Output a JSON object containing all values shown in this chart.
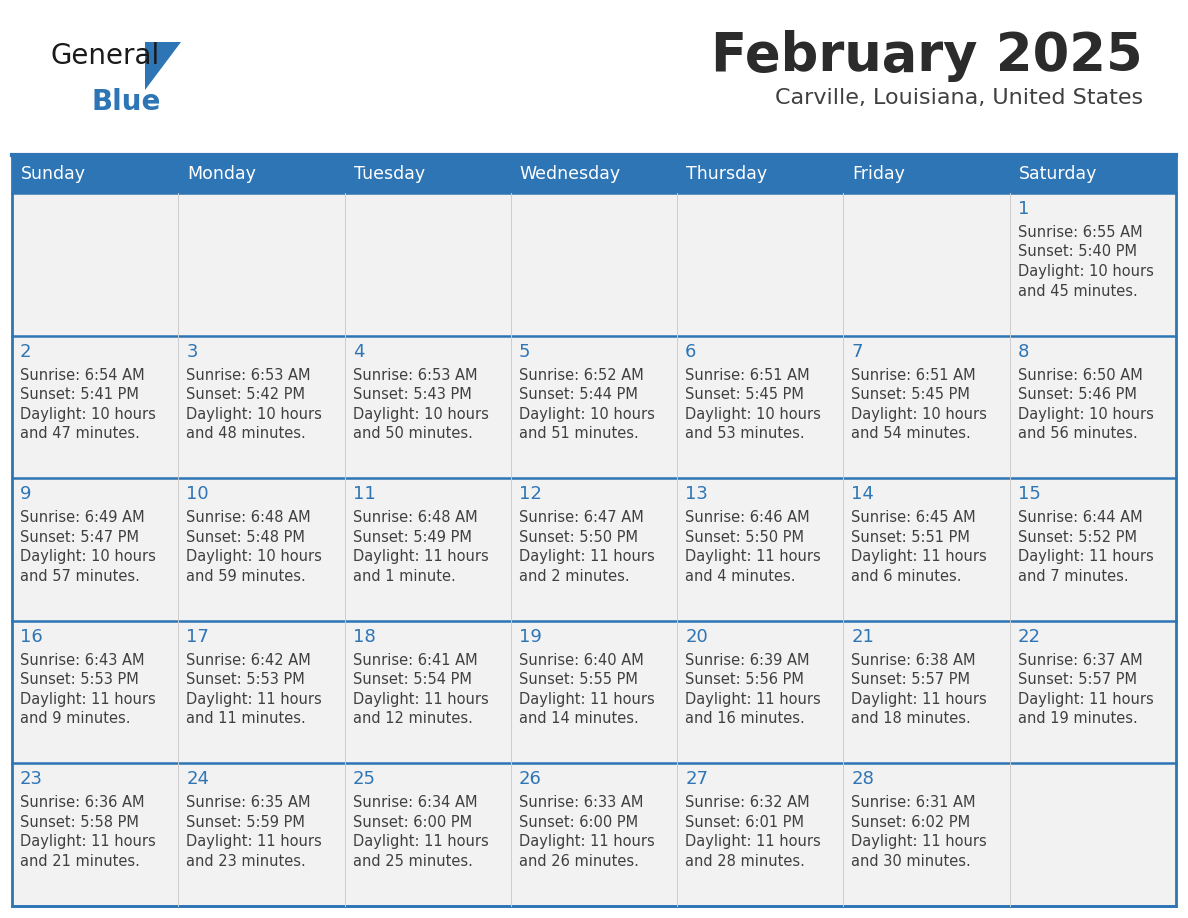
{
  "title": "February 2025",
  "subtitle": "Carville, Louisiana, United States",
  "days_of_week": [
    "Sunday",
    "Monday",
    "Tuesday",
    "Wednesday",
    "Thursday",
    "Friday",
    "Saturday"
  ],
  "header_bg": "#2E75B6",
  "header_text_color": "#FFFFFF",
  "cell_bg": "#F2F2F2",
  "border_color": "#2E75B6",
  "text_color": "#404040",
  "day_num_color": "#2E75B6",
  "title_color": "#2B2B2B",
  "subtitle_color": "#404040",
  "logo_general_color": "#1A1A1A",
  "logo_blue_color": "#2E75B6",
  "calendar_data": [
    [
      null,
      null,
      null,
      null,
      null,
      null,
      {
        "day": 1,
        "sunrise": "6:55 AM",
        "sunset": "5:40 PM",
        "daylight": "10 hours",
        "daylight2": "and 45 minutes."
      }
    ],
    [
      {
        "day": 2,
        "sunrise": "6:54 AM",
        "sunset": "5:41 PM",
        "daylight": "10 hours",
        "daylight2": "and 47 minutes."
      },
      {
        "day": 3,
        "sunrise": "6:53 AM",
        "sunset": "5:42 PM",
        "daylight": "10 hours",
        "daylight2": "and 48 minutes."
      },
      {
        "day": 4,
        "sunrise": "6:53 AM",
        "sunset": "5:43 PM",
        "daylight": "10 hours",
        "daylight2": "and 50 minutes."
      },
      {
        "day": 5,
        "sunrise": "6:52 AM",
        "sunset": "5:44 PM",
        "daylight": "10 hours",
        "daylight2": "and 51 minutes."
      },
      {
        "day": 6,
        "sunrise": "6:51 AM",
        "sunset": "5:45 PM",
        "daylight": "10 hours",
        "daylight2": "and 53 minutes."
      },
      {
        "day": 7,
        "sunrise": "6:51 AM",
        "sunset": "5:45 PM",
        "daylight": "10 hours",
        "daylight2": "and 54 minutes."
      },
      {
        "day": 8,
        "sunrise": "6:50 AM",
        "sunset": "5:46 PM",
        "daylight": "10 hours",
        "daylight2": "and 56 minutes."
      }
    ],
    [
      {
        "day": 9,
        "sunrise": "6:49 AM",
        "sunset": "5:47 PM",
        "daylight": "10 hours",
        "daylight2": "and 57 minutes."
      },
      {
        "day": 10,
        "sunrise": "6:48 AM",
        "sunset": "5:48 PM",
        "daylight": "10 hours",
        "daylight2": "and 59 minutes."
      },
      {
        "day": 11,
        "sunrise": "6:48 AM",
        "sunset": "5:49 PM",
        "daylight": "11 hours",
        "daylight2": "and 1 minute."
      },
      {
        "day": 12,
        "sunrise": "6:47 AM",
        "sunset": "5:50 PM",
        "daylight": "11 hours",
        "daylight2": "and 2 minutes."
      },
      {
        "day": 13,
        "sunrise": "6:46 AM",
        "sunset": "5:50 PM",
        "daylight": "11 hours",
        "daylight2": "and 4 minutes."
      },
      {
        "day": 14,
        "sunrise": "6:45 AM",
        "sunset": "5:51 PM",
        "daylight": "11 hours",
        "daylight2": "and 6 minutes."
      },
      {
        "day": 15,
        "sunrise": "6:44 AM",
        "sunset": "5:52 PM",
        "daylight": "11 hours",
        "daylight2": "and 7 minutes."
      }
    ],
    [
      {
        "day": 16,
        "sunrise": "6:43 AM",
        "sunset": "5:53 PM",
        "daylight": "11 hours",
        "daylight2": "and 9 minutes."
      },
      {
        "day": 17,
        "sunrise": "6:42 AM",
        "sunset": "5:53 PM",
        "daylight": "11 hours",
        "daylight2": "and 11 minutes."
      },
      {
        "day": 18,
        "sunrise": "6:41 AM",
        "sunset": "5:54 PM",
        "daylight": "11 hours",
        "daylight2": "and 12 minutes."
      },
      {
        "day": 19,
        "sunrise": "6:40 AM",
        "sunset": "5:55 PM",
        "daylight": "11 hours",
        "daylight2": "and 14 minutes."
      },
      {
        "day": 20,
        "sunrise": "6:39 AM",
        "sunset": "5:56 PM",
        "daylight": "11 hours",
        "daylight2": "and 16 minutes."
      },
      {
        "day": 21,
        "sunrise": "6:38 AM",
        "sunset": "5:57 PM",
        "daylight": "11 hours",
        "daylight2": "and 18 minutes."
      },
      {
        "day": 22,
        "sunrise": "6:37 AM",
        "sunset": "5:57 PM",
        "daylight": "11 hours",
        "daylight2": "and 19 minutes."
      }
    ],
    [
      {
        "day": 23,
        "sunrise": "6:36 AM",
        "sunset": "5:58 PM",
        "daylight": "11 hours",
        "daylight2": "and 21 minutes."
      },
      {
        "day": 24,
        "sunrise": "6:35 AM",
        "sunset": "5:59 PM",
        "daylight": "11 hours",
        "daylight2": "and 23 minutes."
      },
      {
        "day": 25,
        "sunrise": "6:34 AM",
        "sunset": "6:00 PM",
        "daylight": "11 hours",
        "daylight2": "and 25 minutes."
      },
      {
        "day": 26,
        "sunrise": "6:33 AM",
        "sunset": "6:00 PM",
        "daylight": "11 hours",
        "daylight2": "and 26 minutes."
      },
      {
        "day": 27,
        "sunrise": "6:32 AM",
        "sunset": "6:01 PM",
        "daylight": "11 hours",
        "daylight2": "and 28 minutes."
      },
      {
        "day": 28,
        "sunrise": "6:31 AM",
        "sunset": "6:02 PM",
        "daylight": "11 hours",
        "daylight2": "and 30 minutes."
      },
      null
    ]
  ],
  "fig_width": 11.88,
  "fig_height": 9.18,
  "dpi": 100
}
